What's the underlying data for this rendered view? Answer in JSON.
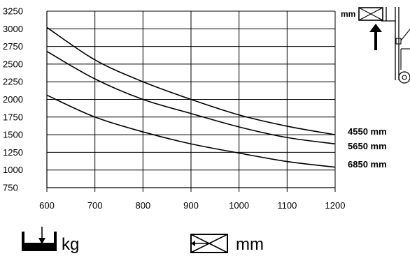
{
  "chart_data": {
    "type": "line",
    "xlim": [
      600,
      1200
    ],
    "ylim": [
      750,
      3250
    ],
    "x_ticks": [
      600,
      700,
      800,
      900,
      1000,
      1100,
      1200
    ],
    "y_ticks": [
      750,
      1000,
      1250,
      1500,
      1750,
      2000,
      2250,
      2500,
      2750,
      3000,
      3250
    ],
    "grid": true,
    "series": [
      {
        "name": "4550 mm",
        "x": [
          600,
          700,
          800,
          900,
          1000,
          1100,
          1200
        ],
        "values": [
          3020,
          2560,
          2250,
          2000,
          1780,
          1620,
          1500
        ]
      },
      {
        "name": "5650 mm",
        "x": [
          600,
          700,
          800,
          900,
          1000,
          1100,
          1200
        ],
        "values": [
          2680,
          2290,
          2000,
          1800,
          1610,
          1460,
          1370
        ]
      },
      {
        "name": "6850 mm",
        "x": [
          600,
          700,
          800,
          900,
          1000,
          1100,
          1200
        ],
        "values": [
          2060,
          1750,
          1540,
          1370,
          1240,
          1120,
          1040
        ]
      }
    ],
    "x_unit_label": "mm",
    "y_unit_label": "kg",
    "top_unit_label": "mm"
  }
}
